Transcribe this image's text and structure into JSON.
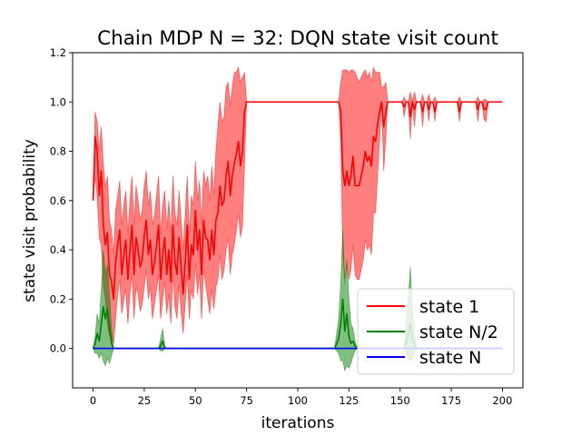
{
  "chart_data": {
    "type": "line",
    "title": "Chain MDP N = 32: DQN state visit count",
    "xlabel": "iterations",
    "ylabel": "state visit probability",
    "xlim": [
      -10,
      210
    ],
    "ylim": [
      -0.16,
      1.2
    ],
    "xticks": [
      0,
      25,
      50,
      75,
      100,
      125,
      150,
      175,
      200
    ],
    "yticks": [
      0.0,
      0.2,
      0.4,
      0.6,
      0.8,
      1.0,
      1.2
    ],
    "xtick_labels": [
      "0",
      "25",
      "50",
      "75",
      "100",
      "125",
      "150",
      "175",
      "200"
    ],
    "ytick_labels": [
      "0.0",
      "0.2",
      "0.4",
      "0.6",
      "0.8",
      "1.0",
      "1.2"
    ],
    "grid": false,
    "legend_position": "lower-right",
    "series": [
      {
        "name": "state 1",
        "color": "#ff0000",
        "fill_color": "#ff0000",
        "x": [
          0,
          1,
          2,
          3,
          4,
          5,
          6,
          7,
          8,
          9,
          10,
          11,
          12,
          13,
          14,
          15,
          16,
          17,
          18,
          19,
          20,
          21,
          22,
          23,
          24,
          25,
          26,
          27,
          28,
          29,
          30,
          31,
          32,
          33,
          34,
          35,
          36,
          37,
          38,
          39,
          40,
          41,
          42,
          43,
          44,
          45,
          46,
          47,
          48,
          49,
          50,
          51,
          52,
          53,
          54,
          55,
          56,
          57,
          58,
          59,
          60,
          61,
          62,
          63,
          64,
          65,
          66,
          67,
          68,
          69,
          70,
          71,
          72,
          73,
          74,
          75,
          80,
          90,
          100,
          110,
          118,
          120,
          121,
          122,
          123,
          124,
          125,
          126,
          127,
          128,
          129,
          130,
          131,
          132,
          133,
          134,
          135,
          136,
          137,
          138,
          139,
          140,
          141,
          142,
          143,
          144,
          146,
          148,
          150,
          151,
          152,
          153,
          154,
          155,
          156,
          157,
          158,
          159,
          160,
          161,
          162,
          163,
          164,
          165,
          166,
          167,
          168,
          169,
          170,
          172,
          174,
          176,
          177,
          178,
          179,
          180,
          182,
          184,
          185,
          186,
          187,
          188,
          189,
          190,
          191,
          192,
          193,
          194,
          196,
          198,
          200
        ],
        "y": [
          0.6,
          0.86,
          0.8,
          0.62,
          0.72,
          0.5,
          0.42,
          0.47,
          0.3,
          0.27,
          0.2,
          0.35,
          0.42,
          0.48,
          0.3,
          0.38,
          0.44,
          0.28,
          0.4,
          0.5,
          0.3,
          0.45,
          0.4,
          0.33,
          0.36,
          0.46,
          0.52,
          0.38,
          0.44,
          0.3,
          0.35,
          0.42,
          0.5,
          0.28,
          0.38,
          0.45,
          0.3,
          0.4,
          0.27,
          0.5,
          0.35,
          0.3,
          0.45,
          0.33,
          0.22,
          0.35,
          0.5,
          0.28,
          0.42,
          0.38,
          0.56,
          0.4,
          0.48,
          0.3,
          0.52,
          0.45,
          0.44,
          0.36,
          0.48,
          0.38,
          0.52,
          0.55,
          0.66,
          0.58,
          0.6,
          0.7,
          0.76,
          0.62,
          0.7,
          0.75,
          0.79,
          0.84,
          0.74,
          0.8,
          0.96,
          1.0,
          1.0,
          1.0,
          1.0,
          1.0,
          1.0,
          1.0,
          0.96,
          0.72,
          0.66,
          0.72,
          0.66,
          0.7,
          0.78,
          0.66,
          0.66,
          0.66,
          0.7,
          0.74,
          0.8,
          0.76,
          0.78,
          0.74,
          0.86,
          0.84,
          0.91,
          0.96,
          1.0,
          0.9,
          0.96,
          1.0,
          1.0,
          1.0,
          1.0,
          1.0,
          0.98,
          1.0,
          1.0,
          0.94,
          1.0,
          0.97,
          1.0,
          1.0,
          1.0,
          0.96,
          1.0,
          1.0,
          0.97,
          1.0,
          1.0,
          0.96,
          1.0,
          1.0,
          1.0,
          1.0,
          1.0,
          1.0,
          1.0,
          1.0,
          0.96,
          1.0,
          1.0,
          1.0,
          1.0,
          1.0,
          1.0,
          0.97,
          1.0,
          1.0,
          0.97,
          0.97,
          1.0,
          1.0,
          1.0,
          1.0,
          1.0
        ],
        "lower": [
          0.6,
          0.7,
          0.62,
          0.45,
          0.42,
          0.25,
          0.2,
          0.1,
          0.05,
          0.04,
          0.02,
          0.12,
          0.22,
          0.28,
          0.14,
          0.2,
          0.24,
          0.1,
          0.22,
          0.3,
          0.12,
          0.25,
          0.22,
          0.15,
          0.18,
          0.25,
          0.32,
          0.2,
          0.25,
          0.12,
          0.18,
          0.24,
          0.3,
          0.12,
          0.2,
          0.27,
          0.14,
          0.22,
          0.1,
          0.3,
          0.17,
          0.12,
          0.26,
          0.15,
          0.06,
          0.18,
          0.3,
          0.12,
          0.24,
          0.2,
          0.35,
          0.22,
          0.3,
          0.12,
          0.32,
          0.26,
          0.2,
          0.14,
          0.24,
          0.16,
          0.25,
          0.28,
          0.38,
          0.28,
          0.32,
          0.4,
          0.45,
          0.3,
          0.38,
          0.42,
          0.48,
          0.55,
          0.45,
          0.5,
          0.75,
          1.0,
          1.0,
          1.0,
          1.0,
          1.0,
          1.0,
          1.0,
          0.85,
          0.38,
          0.28,
          0.34,
          0.28,
          0.32,
          0.42,
          0.3,
          0.28,
          0.28,
          0.32,
          0.36,
          0.44,
          0.4,
          0.42,
          0.38,
          0.55,
          0.55,
          0.7,
          0.85,
          1.0,
          0.72,
          0.85,
          1.0,
          1.0,
          1.0,
          1.0,
          1.0,
          0.94,
          1.0,
          1.0,
          0.85,
          1.0,
          0.9,
          1.0,
          1.0,
          1.0,
          0.9,
          1.0,
          1.0,
          0.92,
          1.0,
          1.0,
          0.92,
          1.0,
          1.0,
          1.0,
          1.0,
          1.0,
          1.0,
          1.0,
          1.0,
          0.92,
          1.0,
          1.0,
          1.0,
          1.0,
          1.0,
          1.0,
          0.92,
          1.0,
          1.0,
          0.93,
          0.92,
          1.0,
          1.0,
          1.0,
          1.0,
          1.0
        ],
        "upper": [
          0.6,
          0.96,
          0.92,
          0.8,
          0.9,
          0.75,
          0.65,
          0.7,
          0.52,
          0.48,
          0.38,
          0.56,
          0.62,
          0.68,
          0.5,
          0.58,
          0.64,
          0.46,
          0.6,
          0.7,
          0.5,
          0.66,
          0.6,
          0.52,
          0.56,
          0.66,
          0.72,
          0.58,
          0.64,
          0.5,
          0.54,
          0.62,
          0.7,
          0.46,
          0.58,
          0.64,
          0.48,
          0.6,
          0.46,
          0.7,
          0.55,
          0.5,
          0.64,
          0.52,
          0.4,
          0.54,
          0.7,
          0.46,
          0.62,
          0.58,
          0.76,
          0.6,
          0.68,
          0.5,
          0.72,
          0.66,
          0.7,
          0.6,
          0.74,
          0.62,
          0.8,
          0.9,
          1.0,
          0.92,
          0.94,
          1.06,
          1.08,
          0.98,
          1.06,
          1.12,
          1.12,
          1.14,
          1.08,
          1.1,
          1.12,
          1.0,
          1.0,
          1.0,
          1.0,
          1.0,
          1.0,
          1.0,
          1.08,
          1.13,
          1.13,
          1.13,
          1.12,
          1.13,
          1.13,
          1.12,
          1.1,
          1.08,
          1.1,
          1.12,
          1.13,
          1.1,
          1.12,
          1.08,
          1.14,
          1.12,
          1.12,
          1.12,
          1.06,
          1.06,
          1.08,
          1.0,
          1.0,
          1.0,
          1.0,
          1.0,
          1.02,
          1.0,
          1.0,
          1.04,
          1.0,
          1.04,
          1.0,
          1.0,
          1.0,
          1.03,
          1.0,
          1.0,
          1.03,
          1.0,
          1.0,
          1.02,
          1.0,
          1.0,
          1.0,
          1.0,
          1.0,
          1.0,
          1.0,
          1.0,
          1.02,
          1.0,
          1.0,
          1.0,
          1.0,
          1.0,
          1.0,
          1.02,
          1.0,
          1.0,
          1.01,
          1.01,
          1.0,
          1.0,
          1.0,
          1.0,
          1.0
        ]
      },
      {
        "name": "state N/2",
        "color": "#008000",
        "fill_color": "#008000",
        "x": [
          0,
          1,
          2,
          3,
          4,
          5,
          6,
          7,
          8,
          9,
          10,
          11,
          12,
          20,
          30,
          32,
          33,
          34,
          35,
          36,
          40,
          60,
          80,
          100,
          110,
          118,
          119,
          120,
          121,
          122,
          123,
          124,
          125,
          126,
          127,
          128,
          129,
          130,
          135,
          140,
          145,
          150,
          152,
          153,
          154,
          155,
          156,
          157,
          158,
          160,
          170,
          180,
          190,
          200
        ],
        "y": [
          0.0,
          0.02,
          0.06,
          0.03,
          0.1,
          0.17,
          0.12,
          0.16,
          0.08,
          0.02,
          0.0,
          0.0,
          0.0,
          0.0,
          0.0,
          0.0,
          0.01,
          0.03,
          0.0,
          0.0,
          0.0,
          0.0,
          0.0,
          0.0,
          0.0,
          0.0,
          0.02,
          0.04,
          0.1,
          0.2,
          0.07,
          0.14,
          0.05,
          0.02,
          0.03,
          0.01,
          0.0,
          0.0,
          0.0,
          0.0,
          0.0,
          0.0,
          0.0,
          0.03,
          0.06,
          0.1,
          0.04,
          0.02,
          0.0,
          0.0,
          0.0,
          0.0,
          0.0,
          0.0
        ],
        "lower": [
          0.0,
          -0.02,
          -0.02,
          -0.04,
          -0.02,
          -0.05,
          -0.07,
          -0.04,
          -0.06,
          -0.03,
          0.0,
          0.0,
          0.0,
          0.0,
          0.0,
          0.0,
          -0.01,
          -0.01,
          0.0,
          0.0,
          0.0,
          0.0,
          0.0,
          0.0,
          0.0,
          0.0,
          -0.01,
          -0.02,
          -0.05,
          -0.05,
          -0.09,
          -0.07,
          -0.08,
          -0.06,
          -0.03,
          -0.01,
          0.0,
          0.0,
          0.0,
          0.0,
          0.0,
          0.0,
          0.0,
          -0.02,
          -0.04,
          -0.05,
          -0.04,
          -0.02,
          0.0,
          0.0,
          0.0,
          0.0,
          0.0,
          0.0
        ],
        "upper": [
          0.0,
          0.05,
          0.14,
          0.1,
          0.24,
          0.4,
          0.3,
          0.34,
          0.22,
          0.08,
          0.0,
          0.0,
          0.0,
          0.0,
          0.0,
          0.0,
          0.04,
          0.08,
          0.01,
          0.0,
          0.0,
          0.0,
          0.0,
          0.0,
          0.0,
          0.0,
          0.06,
          0.12,
          0.26,
          0.48,
          0.26,
          0.36,
          0.2,
          0.1,
          0.08,
          0.03,
          0.0,
          0.0,
          0.0,
          0.0,
          0.0,
          0.0,
          0.0,
          0.1,
          0.2,
          0.33,
          0.15,
          0.07,
          0.0,
          0.0,
          0.0,
          0.0,
          0.0,
          0.0
        ]
      },
      {
        "name": "state N",
        "color": "#0000ff",
        "fill_color": "#0000ff",
        "x": [
          0,
          200
        ],
        "y": [
          0.0,
          0.0
        ],
        "lower": [
          0.0,
          0.0
        ],
        "upper": [
          0.0,
          0.0
        ]
      }
    ]
  }
}
